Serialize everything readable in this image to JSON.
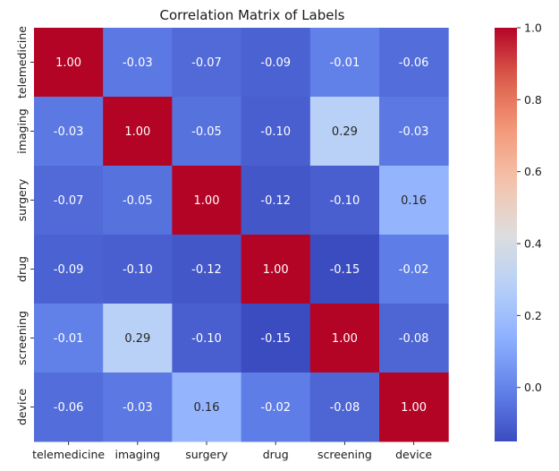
{
  "chart_data": {
    "type": "heatmap",
    "title": "Correlation Matrix of Labels",
    "xlabel": "",
    "ylabel": "",
    "rows": [
      "telemedicine",
      "imaging",
      "surgery",
      "drug",
      "screening",
      "device"
    ],
    "columns": [
      "telemedicine",
      "imaging",
      "surgery",
      "drug",
      "screening",
      "device"
    ],
    "values": [
      [
        1.0,
        -0.03,
        -0.07,
        -0.09,
        -0.01,
        -0.06
      ],
      [
        -0.03,
        1.0,
        -0.05,
        -0.1,
        0.29,
        -0.03
      ],
      [
        -0.07,
        -0.05,
        1.0,
        -0.12,
        -0.1,
        0.16
      ],
      [
        -0.09,
        -0.1,
        -0.12,
        1.0,
        -0.15,
        -0.02
      ],
      [
        -0.01,
        0.29,
        -0.1,
        -0.15,
        1.0,
        -0.08
      ],
      [
        -0.06,
        -0.03,
        0.16,
        -0.02,
        -0.08,
        1.0
      ]
    ],
    "value_format": "0.00",
    "colorbar": {
      "colormap": "coolwarm",
      "vmin": -0.15,
      "vmax": 1.0,
      "ticks": [
        0.0,
        0.2,
        0.4,
        0.6,
        0.8,
        1.0
      ],
      "tick_labels": [
        "0.0",
        "0.2",
        "0.4",
        "0.6",
        "0.8",
        "1.0"
      ]
    }
  }
}
